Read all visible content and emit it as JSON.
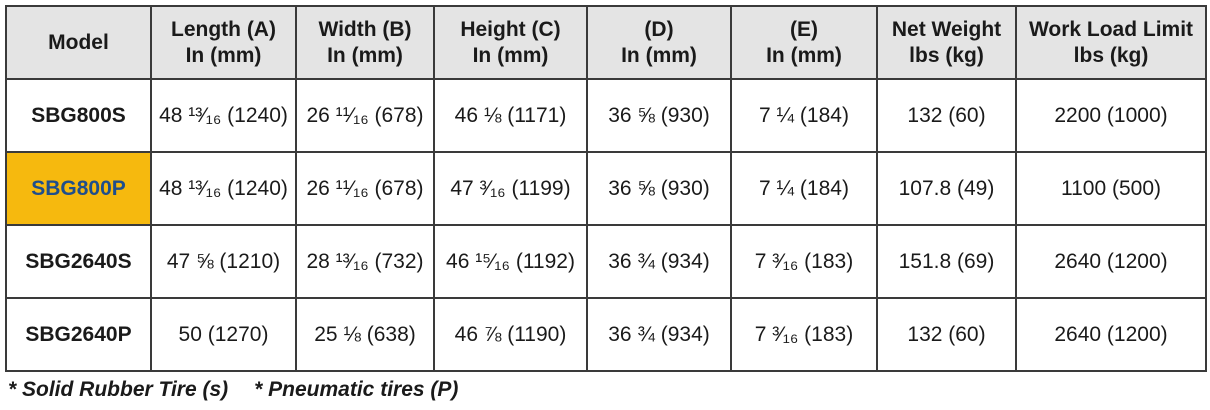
{
  "table": {
    "header": [
      [
        "Model"
      ],
      [
        "Length (A)",
        "In (mm)"
      ],
      [
        "Width (B)",
        "In (mm)"
      ],
      [
        "Height (C)",
        "In (mm)"
      ],
      [
        "(D)",
        "In (mm)"
      ],
      [
        "(E)",
        "In (mm)"
      ],
      [
        "Net Weight",
        "lbs (kg)"
      ],
      [
        "Work Load Limit",
        "lbs (kg)"
      ]
    ],
    "rows": [
      [
        "SBG800S",
        "48 ¹³⁄₁₆ (1240)",
        "26 ¹¹⁄₁₆ (678)",
        "46 ⅛ (1171)",
        "36 ⅝ (930)",
        "7 ¼ (184)",
        "132 (60)",
        "2200 (1000)"
      ],
      [
        "SBG800P",
        "48 ¹³⁄₁₆ (1240)",
        "26 ¹¹⁄₁₆ (678)",
        "47 ³⁄₁₆ (1199)",
        "36 ⅝ (930)",
        "7 ¼ (184)",
        "107.8 (49)",
        "1100 (500)"
      ],
      [
        "SBG2640S",
        "47 ⅝ (1210)",
        "28 ¹³⁄₁₆ (732)",
        "46 ¹⁵⁄₁₆ (1192)",
        "36 ¾ (934)",
        "7 ³⁄₁₆ (183)",
        "151.8 (69)",
        "2640 (1200)"
      ],
      [
        "SBG2640P",
        "50 (1270)",
        "25 ⅛ (638)",
        "46 ⅞ (1190)",
        "36 ¾ (934)",
        "7 ³⁄₁₆ (183)",
        "132 (60)",
        "2640 (1200)"
      ]
    ],
    "highlight": {
      "row": 1,
      "background": "#f6b90e",
      "text_color": "#1f4e8c"
    }
  },
  "footnotes": [
    "* Solid Rubber Tire (s)",
    "* Pneumatic tires (P)"
  ]
}
